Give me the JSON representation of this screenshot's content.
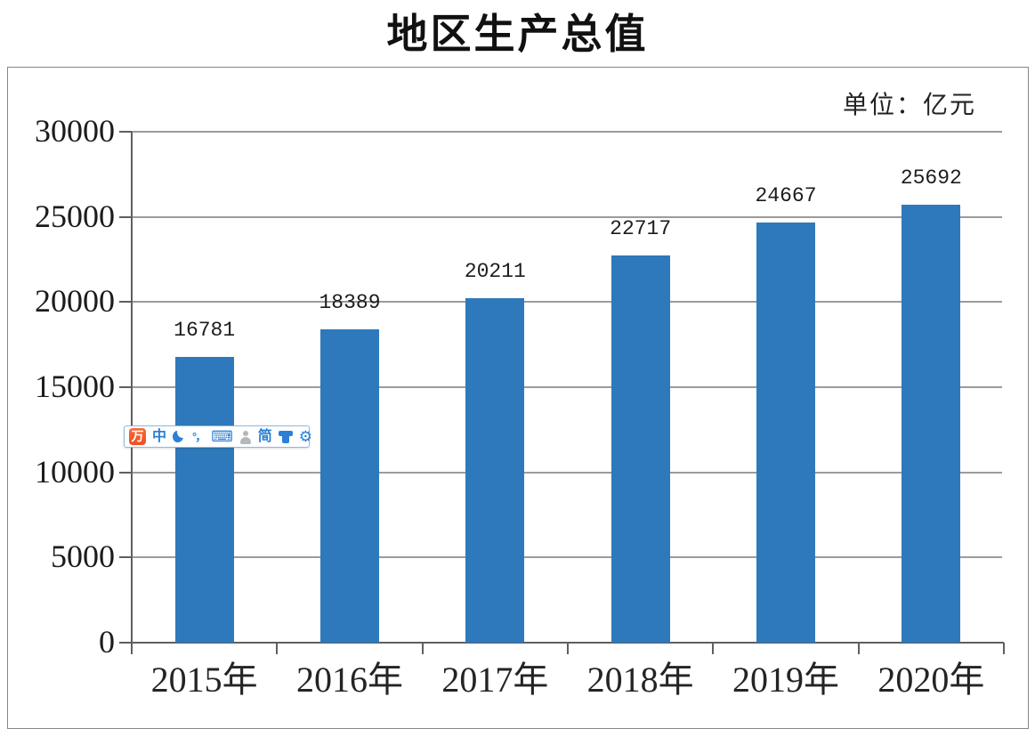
{
  "title": "地区生产总值",
  "unit_label": "单位：亿元",
  "chart_data": {
    "type": "bar",
    "title": "地区生产总值",
    "unit": "亿元",
    "categories": [
      "2015年",
      "2016年",
      "2017年",
      "2018年",
      "2019年",
      "2020年"
    ],
    "values": [
      16781,
      18389,
      20211,
      22717,
      24667,
      25692
    ],
    "xlabel": "",
    "ylabel": "",
    "ylim": [
      0,
      30000
    ],
    "yticks": [
      0,
      5000,
      10000,
      15000,
      20000,
      25000,
      30000
    ],
    "grid": true,
    "legend": "none",
    "bar_color": "#2e79bb"
  },
  "ime_toolbar": {
    "description": "Sogou input method status bar",
    "logo_glyph": "万",
    "chinese_mode_glyph": "中",
    "punctuation_glyph": "°，",
    "keyboard_glyph": "⌨",
    "simplified_glyph": "简",
    "gear_glyph": "⚙"
  },
  "colors": {
    "bar": "#2e79bb",
    "gridline": "#9b9b9b",
    "axis": "#5f5f5f",
    "toolbar_icon_blue": "#2b80d5",
    "toolbar_logo_orange": "#f4572a",
    "toolbar_person_gray": "#b3b8bd"
  }
}
